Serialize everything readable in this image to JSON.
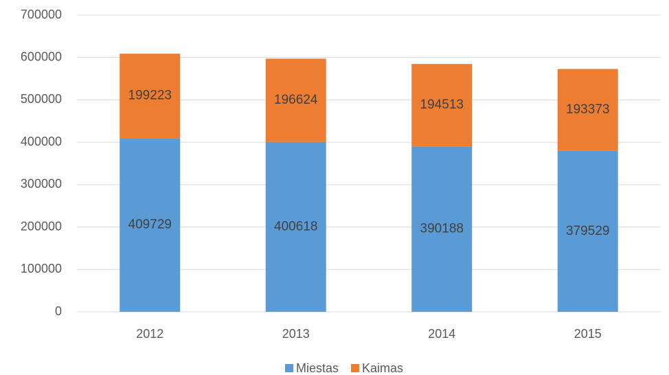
{
  "chart_data": {
    "type": "stacked_bar",
    "categories": [
      "2012",
      "2013",
      "2014",
      "2015"
    ],
    "series": [
      {
        "name": "Miestas",
        "color": "#5b9bd5",
        "values": [
          409729,
          400618,
          390188,
          379529
        ]
      },
      {
        "name": "Kaimas",
        "color": "#ed7d31",
        "values": [
          199223,
          196624,
          194513,
          193373
        ]
      }
    ],
    "ylim": [
      0,
      700000
    ],
    "yticks": [
      0,
      100000,
      200000,
      300000,
      400000,
      500000,
      600000,
      700000
    ],
    "grid": true,
    "legend": "bottom"
  }
}
